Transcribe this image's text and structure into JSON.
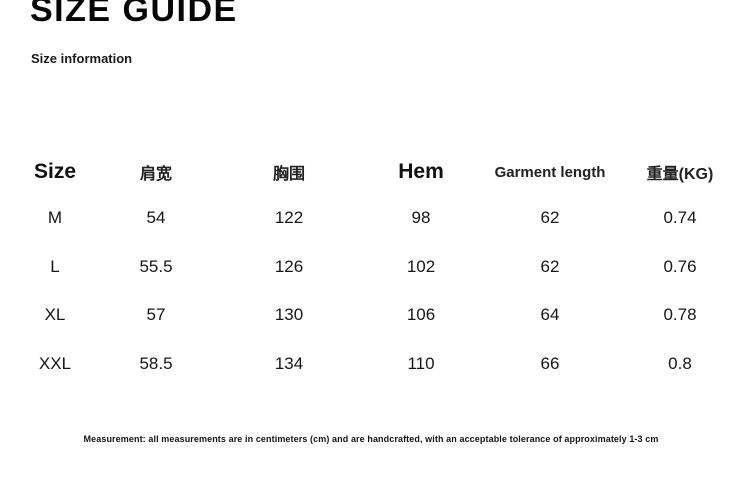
{
  "page": {
    "title": "SIZE GUIDE",
    "subtitle": "Size information",
    "footnote": "Measurement: all measurements are in centimeters (cm) and are handcrafted, with an acceptable tolerance of approximately 1-3 cm"
  },
  "size_table": {
    "columns": [
      "Size",
      "肩宽",
      "胸围",
      "Hem",
      "Garment length",
      "重量(KG)"
    ],
    "rows": [
      [
        "M",
        "54",
        "122",
        "98",
        "62",
        "0.74"
      ],
      [
        "L",
        "55.5",
        "126",
        "102",
        "62",
        "0.76"
      ],
      [
        "XL",
        "57",
        "130",
        "106",
        "64",
        "0.78"
      ],
      [
        "XXL",
        "58.5",
        "134",
        "110",
        "66",
        "0.8"
      ]
    ]
  }
}
